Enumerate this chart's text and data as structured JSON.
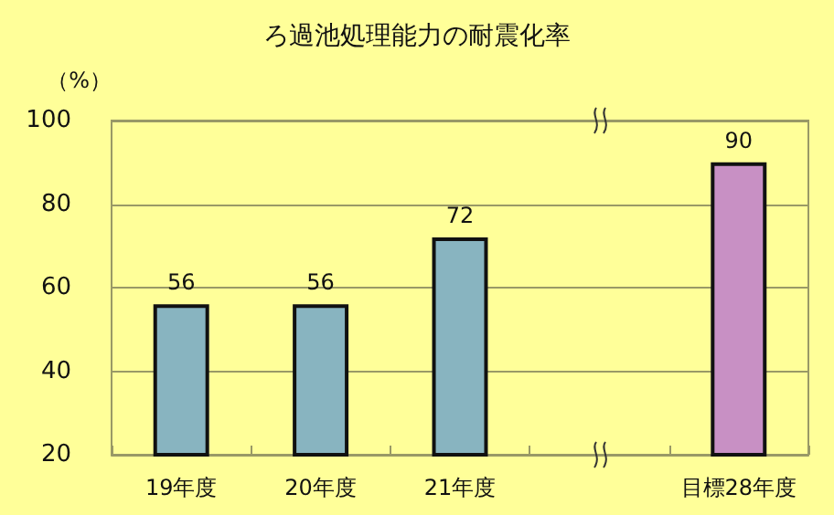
{
  "chart_data": {
    "type": "bar",
    "title": "ろ過池処理能力の耐震化率",
    "ylabel": "（%）",
    "categories": [
      "19年度",
      "20年度",
      "21年度",
      null,
      "目標28年度"
    ],
    "values": [
      56,
      56,
      72,
      null,
      90
    ],
    "colors": [
      "#88b4c0",
      "#88b4c0",
      "#88b4c0",
      null,
      "#c890c4"
    ],
    "ylim": [
      20,
      100
    ],
    "yticks": [
      20,
      40,
      60,
      80,
      100
    ],
    "grid": "y",
    "data_labels": true
  }
}
